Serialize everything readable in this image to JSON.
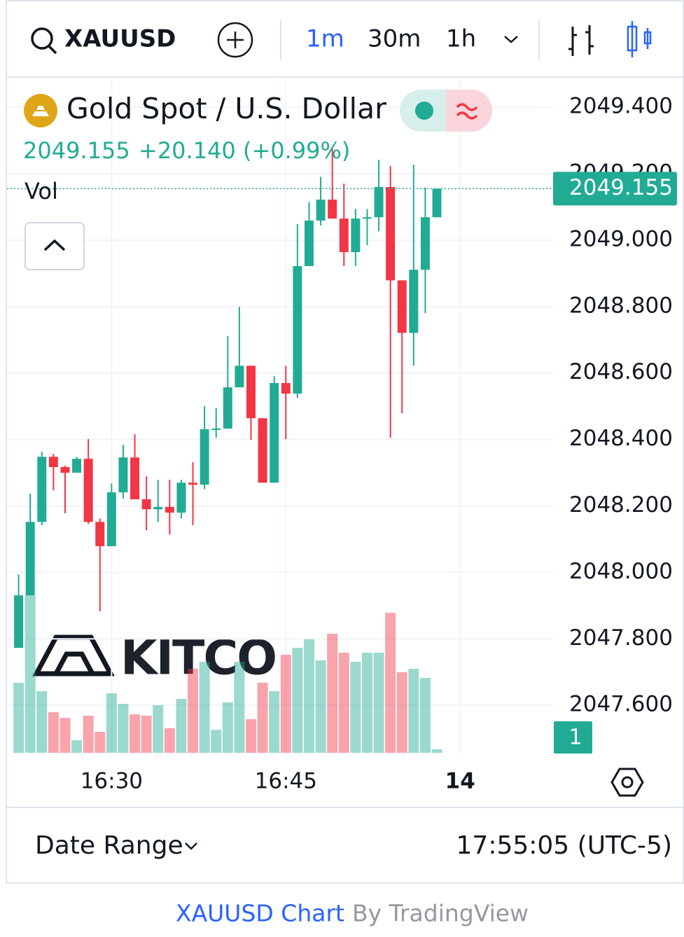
{
  "toolbar": {
    "symbol": "XAUUSD",
    "intervals": [
      "1m",
      "30m",
      "1h"
    ]
  },
  "chart_data": {
    "type": "candlestick",
    "title": "Gold Spot / U.S. Dollar",
    "price": "2049.155",
    "change": "+20.140 (+0.99%)",
    "volume_label": "Vol",
    "scale_badge": "1",
    "watermark": "KITCO",
    "up_color": "#22ab94",
    "down_color": "#f23645",
    "grid": true,
    "x": [
      "16:22",
      "16:23",
      "16:24",
      "16:25",
      "16:26",
      "16:27",
      "16:28",
      "16:29",
      "16:30",
      "16:31",
      "16:32",
      "16:33",
      "16:34",
      "16:35",
      "16:36",
      "16:37",
      "16:38",
      "16:39",
      "16:40",
      "16:41",
      "16:42",
      "16:43",
      "16:44",
      "16:45",
      "16:46",
      "16:47",
      "16:48",
      "16:49",
      "16:50",
      "16:51",
      "16:52",
      "16:53",
      "16:54",
      "16:55",
      "16:56",
      "16:57",
      "16:58"
    ],
    "open": [
      2047.773,
      2047.931,
      2048.152,
      2048.348,
      2048.317,
      2048.3,
      2048.342,
      2048.152,
      2048.079,
      2048.241,
      2048.346,
      2048.22,
      2048.19,
      2048.197,
      2048.18,
      2048.27,
      2048.264,
      2048.431,
      2048.433,
      2048.557,
      2048.622,
      2048.464,
      2048.27,
      2048.57,
      2048.538,
      2048.922,
      2049.059,
      2049.122,
      2049.065,
      2048.964,
      2049.065,
      2049.069,
      2049.16,
      2048.879,
      2048.721,
      2048.911,
      2049.069
    ],
    "high": [
      2047.994,
      2048.237,
      2048.363,
      2048.357,
      2048.321,
      2048.348,
      2048.401,
      2048.162,
      2048.268,
      2048.384,
      2048.416,
      2048.289,
      2048.279,
      2048.279,
      2048.279,
      2048.332,
      2048.5,
      2048.494,
      2048.711,
      2048.799,
      2048.622,
      2048.464,
      2048.591,
      2048.622,
      2049.048,
      2049.115,
      2049.191,
      2049.28,
      2049.17,
      2049.094,
      2049.094,
      2049.242,
      2049.223,
      2048.879,
      2049.227,
      2049.158,
      2049.155
    ],
    "low": [
      2047.773,
      2047.931,
      2048.142,
      2048.247,
      2048.178,
      2048.3,
      2048.146,
      2047.883,
      2048.079,
      2048.222,
      2048.22,
      2048.127,
      2048.152,
      2048.114,
      2048.163,
      2048.142,
      2048.251,
      2048.405,
      2048.433,
      2048.557,
      2048.399,
      2048.27,
      2048.27,
      2048.401,
      2048.525,
      2048.922,
      2049.044,
      2049.065,
      2048.922,
      2048.922,
      2048.985,
      2049.027,
      2048.405,
      2048.479,
      2048.622,
      2048.78,
      2049.069
    ],
    "close": [
      2047.931,
      2048.152,
      2048.348,
      2048.317,
      2048.3,
      2048.342,
      2048.152,
      2048.079,
      2048.241,
      2048.346,
      2048.22,
      2048.19,
      2048.197,
      2048.18,
      2048.27,
      2048.264,
      2048.431,
      2048.433,
      2048.557,
      2048.622,
      2048.464,
      2048.27,
      2048.57,
      2048.538,
      2048.922,
      2049.059,
      2049.122,
      2049.065,
      2048.964,
      2049.065,
      2049.069,
      2049.16,
      2048.879,
      2048.721,
      2048.911,
      2049.069,
      2049.155
    ],
    "volume": [
      100,
      225,
      88,
      58,
      50,
      18,
      53,
      30,
      85,
      70,
      55,
      53,
      68,
      35,
      77,
      120,
      130,
      33,
      72,
      130,
      48,
      100,
      88,
      140,
      150,
      162,
      132,
      170,
      143,
      130,
      143,
      143,
      200,
      115,
      120,
      107,
      5
    ],
    "ylim": [
      2047.457,
      2049.491
    ],
    "yticks": [
      {
        "value": 2047.6,
        "label": "2047.600"
      },
      {
        "value": 2047.8,
        "label": "2047.800"
      },
      {
        "value": 2048.0,
        "label": "2048.000"
      },
      {
        "value": 2048.2,
        "label": "2048.200"
      },
      {
        "value": 2048.4,
        "label": "2048.400"
      },
      {
        "value": 2048.6,
        "label": "2048.600"
      },
      {
        "value": 2048.8,
        "label": "2048.800"
      },
      {
        "value": 2049.0,
        "label": "2049.000"
      },
      {
        "value": 2049.2,
        "label": "2049.200"
      },
      {
        "value": 2049.4,
        "label": "2049.400"
      }
    ],
    "xlim": [
      "16:21",
      "17:08"
    ],
    "xticks": [
      "16:30",
      "16:45",
      {
        "value": "17:00",
        "label": "14"
      }
    ]
  },
  "footer": {
    "date_range": "Date Range",
    "time": "17:55:05 (UTC-5)",
    "link": "XAUUSD Chart",
    "by": "By TradingView"
  }
}
